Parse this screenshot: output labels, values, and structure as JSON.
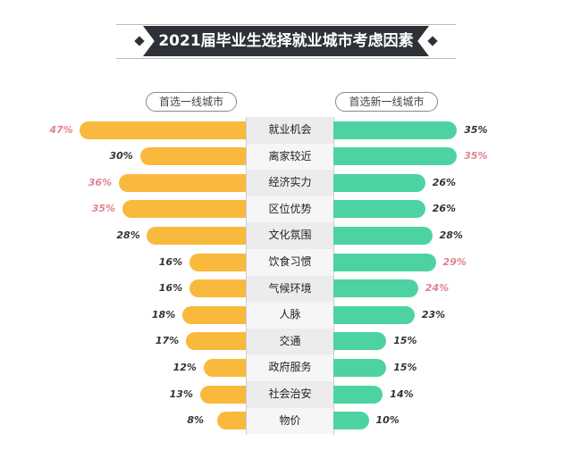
{
  "chart_data": {
    "type": "bar",
    "title": "2021届毕业生选择就业城市考虑因素",
    "categories": [
      "就业机会",
      "离家较近",
      "经济实力",
      "区位优势",
      "文化氛围",
      "饮食习惯",
      "气候环境",
      "人脉",
      "交通",
      "政府服务",
      "社会治安",
      "物价"
    ],
    "series": [
      {
        "name": "首选一线城市",
        "color": "#f9b93c",
        "values": [
          47,
          30,
          36,
          35,
          28,
          16,
          16,
          18,
          17,
          12,
          13,
          8
        ],
        "highlighted": [
          true,
          false,
          true,
          true,
          false,
          false,
          false,
          false,
          false,
          false,
          false,
          false
        ]
      },
      {
        "name": "首选新一线城市",
        "color": "#4dd3a1",
        "values": [
          35,
          35,
          26,
          26,
          28,
          29,
          24,
          23,
          15,
          15,
          14,
          10
        ],
        "highlighted": [
          false,
          true,
          false,
          false,
          false,
          true,
          true,
          false,
          false,
          false,
          false,
          false
        ]
      }
    ],
    "unit": "%",
    "highlight_color": "#e0828f"
  }
}
